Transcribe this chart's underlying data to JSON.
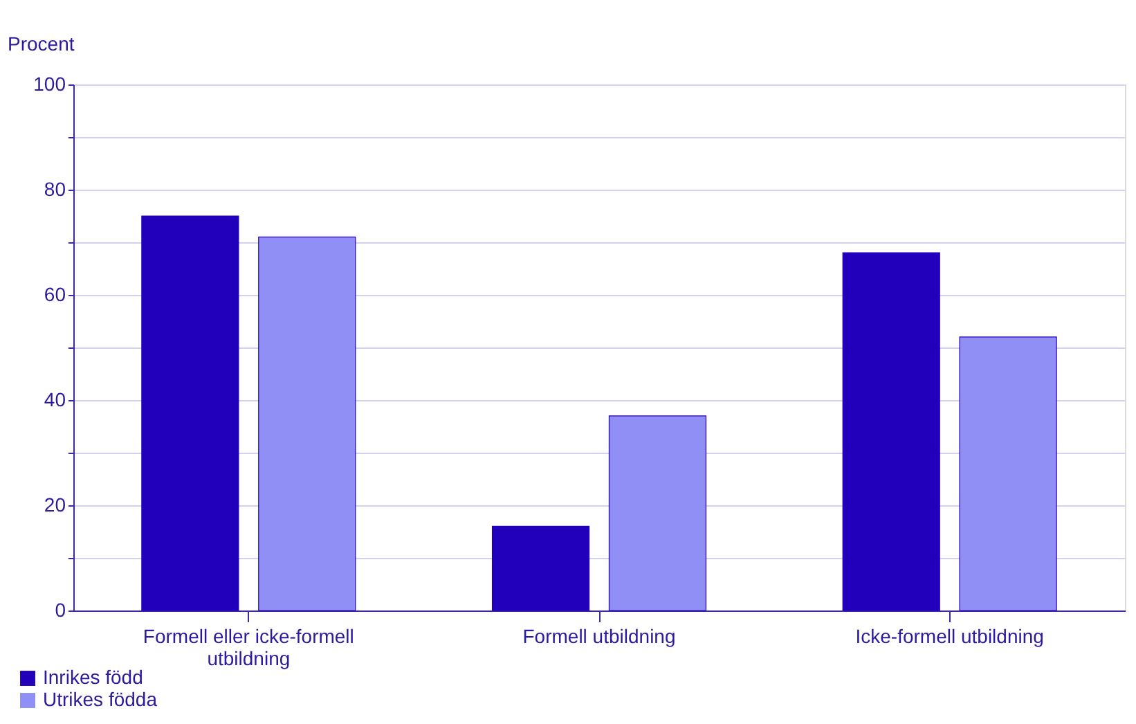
{
  "chart_data": {
    "type": "bar",
    "ylabel": "Procent",
    "categories": [
      "Formell eller icke-formell utbildning",
      "Formell utbildning",
      "Icke-formell utbildning"
    ],
    "series": [
      {
        "name": "Inrikes född",
        "color": "#2200bb",
        "values": [
          75,
          16,
          68
        ]
      },
      {
        "name": "Utrikes födda",
        "color": "#8f8ff5",
        "values": [
          71,
          37,
          52
        ]
      }
    ],
    "ylim": [
      0,
      100
    ],
    "yticks": [
      0,
      {
        "value": 10,
        "label": null
      },
      20,
      {
        "value": 30,
        "label": null
      },
      40,
      {
        "value": 50,
        "label": null
      },
      60,
      {
        "value": 70,
        "label": null
      },
      80,
      {
        "value": 90,
        "label": null
      },
      100
    ],
    "grid": "y",
    "legend": "bottom left"
  }
}
